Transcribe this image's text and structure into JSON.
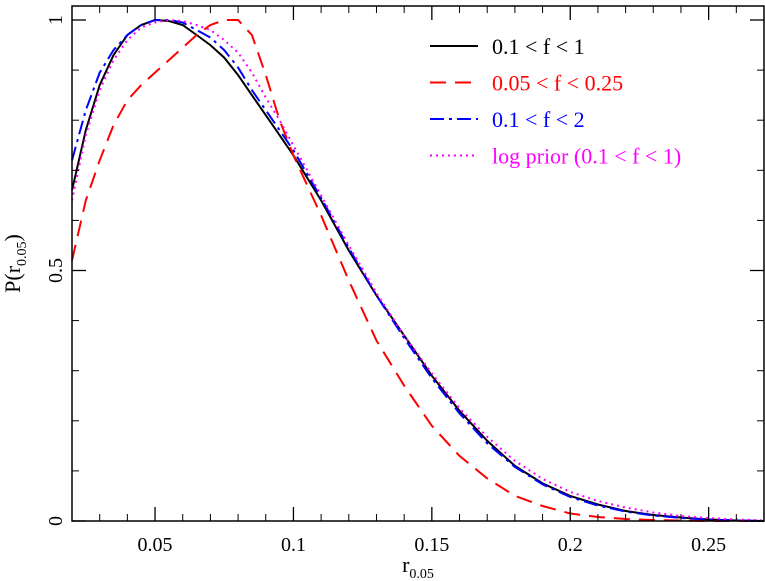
{
  "chart_data": {
    "type": "line",
    "title": "",
    "xlabel_main": "r",
    "xlabel_sub": "0.05",
    "ylabel_main": "P(r",
    "ylabel_sub": "0.05",
    "ylabel_close": ")",
    "xlim": [
      0.02,
      0.27
    ],
    "ylim": [
      0,
      1.0
    ],
    "xticks": [
      0.05,
      0.1,
      0.15,
      0.2,
      0.25
    ],
    "xtick_labels": [
      "0.05",
      "0.1",
      "0.15",
      "0.2",
      "0.25"
    ],
    "yticks": [
      0,
      0.5,
      1
    ],
    "ytick_labels": [
      "0",
      "0.5",
      "1"
    ],
    "legend_position": "top-right",
    "grid": false,
    "series": [
      {
        "name": "0.1 < f < 1",
        "color": "#000000",
        "dash": "solid",
        "x": [
          0.02,
          0.025,
          0.03,
          0.035,
          0.04,
          0.045,
          0.05,
          0.055,
          0.06,
          0.065,
          0.07,
          0.075,
          0.08,
          0.085,
          0.09,
          0.095,
          0.1,
          0.11,
          0.12,
          0.13,
          0.14,
          0.15,
          0.16,
          0.17,
          0.18,
          0.19,
          0.2,
          0.21,
          0.22,
          0.23,
          0.24,
          0.25,
          0.26,
          0.27
        ],
        "y": [
          0.66,
          0.78,
          0.87,
          0.93,
          0.97,
          0.99,
          1.0,
          0.998,
          0.99,
          0.97,
          0.95,
          0.925,
          0.89,
          0.85,
          0.81,
          0.77,
          0.73,
          0.64,
          0.54,
          0.45,
          0.37,
          0.29,
          0.22,
          0.16,
          0.11,
          0.075,
          0.05,
          0.033,
          0.02,
          0.012,
          0.007,
          0.003,
          0.001,
          0.0
        ]
      },
      {
        "name": "0.05 < f < 0.25",
        "color": "#ff0000",
        "dash": "16,9",
        "x": [
          0.02,
          0.025,
          0.03,
          0.035,
          0.04,
          0.045,
          0.05,
          0.055,
          0.06,
          0.065,
          0.07,
          0.075,
          0.08,
          0.085,
          0.09,
          0.095,
          0.1,
          0.11,
          0.12,
          0.13,
          0.14,
          0.15,
          0.16,
          0.17,
          0.18,
          0.19,
          0.2,
          0.21,
          0.22,
          0.23,
          0.24,
          0.25,
          0.26,
          0.27
        ],
        "y": [
          0.52,
          0.64,
          0.72,
          0.79,
          0.84,
          0.87,
          0.895,
          0.92,
          0.945,
          0.97,
          0.99,
          1.0,
          1.0,
          0.97,
          0.89,
          0.8,
          0.73,
          0.61,
          0.48,
          0.36,
          0.27,
          0.19,
          0.13,
          0.085,
          0.05,
          0.03,
          0.015,
          0.008,
          0.004,
          0.002,
          0.001,
          0.0,
          0.0,
          0.0
        ]
      },
      {
        "name": "0.1 < f < 2",
        "color": "#0000ff",
        "dash": "14,5,3,5",
        "x": [
          0.02,
          0.025,
          0.03,
          0.035,
          0.04,
          0.045,
          0.05,
          0.055,
          0.06,
          0.065,
          0.07,
          0.075,
          0.08,
          0.085,
          0.09,
          0.095,
          0.1,
          0.11,
          0.12,
          0.13,
          0.14,
          0.15,
          0.16,
          0.17,
          0.18,
          0.19,
          0.2,
          0.21,
          0.22,
          0.23,
          0.24,
          0.25,
          0.26,
          0.27
        ],
        "y": [
          0.72,
          0.82,
          0.895,
          0.94,
          0.97,
          0.99,
          1.0,
          1.0,
          0.995,
          0.98,
          0.965,
          0.94,
          0.905,
          0.86,
          0.82,
          0.78,
          0.74,
          0.645,
          0.545,
          0.45,
          0.365,
          0.285,
          0.215,
          0.155,
          0.108,
          0.073,
          0.048,
          0.031,
          0.019,
          0.011,
          0.006,
          0.003,
          0.001,
          0.0
        ]
      },
      {
        "name": "log prior (0.1 < f < 1)",
        "color": "#ff00ff",
        "dash": "2,4",
        "x": [
          0.02,
          0.025,
          0.03,
          0.035,
          0.04,
          0.045,
          0.05,
          0.055,
          0.06,
          0.065,
          0.07,
          0.075,
          0.08,
          0.085,
          0.09,
          0.095,
          0.1,
          0.11,
          0.12,
          0.13,
          0.14,
          0.15,
          0.16,
          0.17,
          0.18,
          0.19,
          0.2,
          0.21,
          0.22,
          0.23,
          0.24,
          0.25,
          0.26,
          0.27
        ],
        "y": [
          0.64,
          0.77,
          0.86,
          0.92,
          0.96,
          0.985,
          0.995,
          1.0,
          0.998,
          0.99,
          0.98,
          0.96,
          0.935,
          0.895,
          0.845,
          0.8,
          0.75,
          0.65,
          0.55,
          0.455,
          0.37,
          0.295,
          0.225,
          0.168,
          0.12,
          0.084,
          0.058,
          0.04,
          0.027,
          0.017,
          0.01,
          0.006,
          0.003,
          0.001
        ]
      }
    ]
  }
}
